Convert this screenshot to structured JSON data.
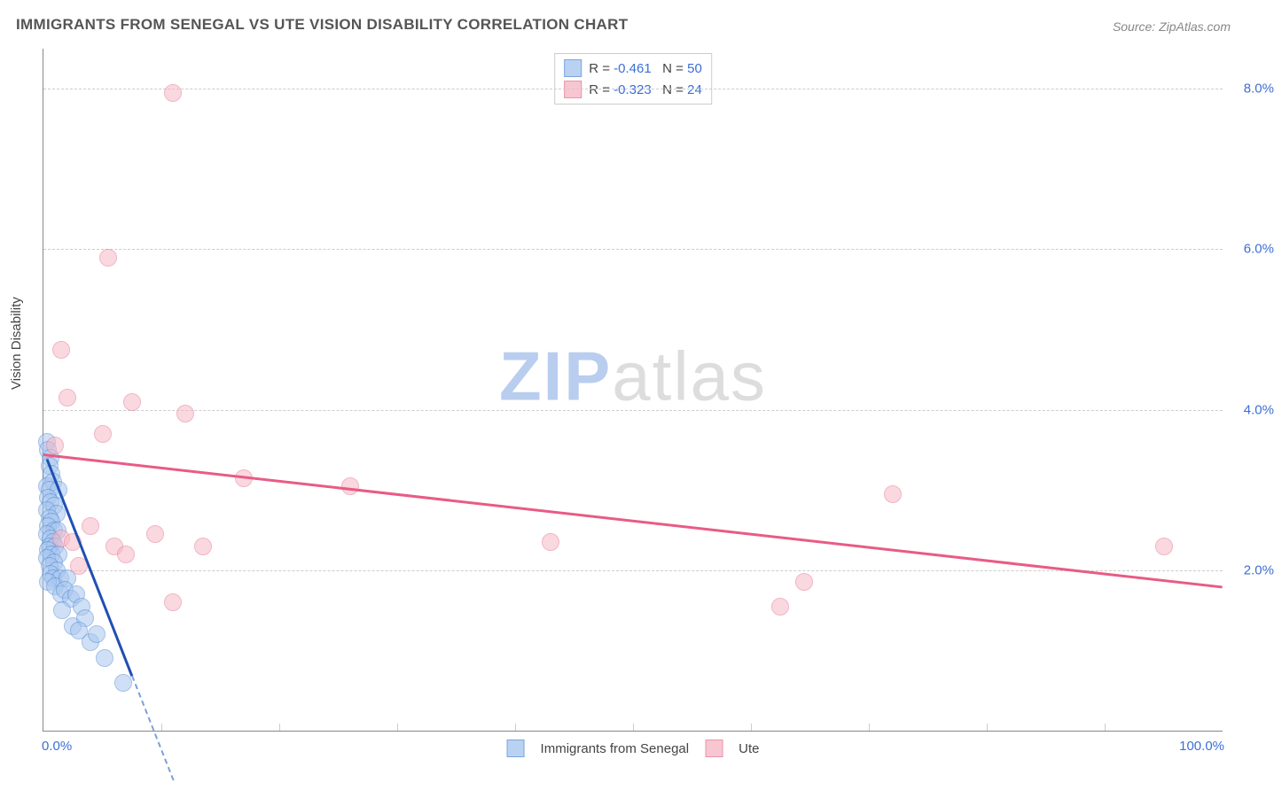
{
  "title": "IMMIGRANTS FROM SENEGAL VS UTE VISION DISABILITY CORRELATION CHART",
  "source": "Source: ZipAtlas.com",
  "ylabel": "Vision Disability",
  "watermark_strong": "ZIP",
  "watermark_light": "atlas",
  "watermark_strong_color": "#b9cdee",
  "watermark_light_color": "#dddddd",
  "chart": {
    "type": "scatter",
    "xlim": [
      0,
      100
    ],
    "ylim": [
      0,
      8.5
    ],
    "y_ticks": [
      2.0,
      4.0,
      6.0,
      8.0
    ],
    "y_tick_labels": [
      "2.0%",
      "4.0%",
      "6.0%",
      "8.0%"
    ],
    "x_ticks": [
      0,
      100
    ],
    "x_tick_labels": [
      "0.0%",
      "100.0%"
    ],
    "x_minor_ticks": [
      10,
      20,
      30,
      40,
      50,
      60,
      70,
      80,
      90
    ],
    "background_color": "#ffffff",
    "grid_color": "#cccccc",
    "axis_color": "#888888",
    "point_radius": 10,
    "point_border_width": 1.5,
    "series": [
      {
        "name": "Immigrants from Senegal",
        "fill": "#a9c7ef",
        "fill_opacity": 0.55,
        "stroke": "#5a8fd6",
        "trend_color": "#1f4fb3",
        "trend_dash_color": "#7da0d8",
        "R": "-0.461",
        "N": "50",
        "points": [
          [
            0.3,
            3.6
          ],
          [
            0.4,
            3.5
          ],
          [
            0.6,
            3.4
          ],
          [
            0.5,
            3.3
          ],
          [
            0.7,
            3.2
          ],
          [
            0.3,
            3.05
          ],
          [
            0.8,
            3.1
          ],
          [
            0.5,
            3.0
          ],
          [
            1.3,
            3.0
          ],
          [
            0.4,
            2.9
          ],
          [
            0.6,
            2.85
          ],
          [
            0.9,
            2.8
          ],
          [
            0.3,
            2.75
          ],
          [
            1.1,
            2.7
          ],
          [
            0.5,
            2.65
          ],
          [
            0.7,
            2.6
          ],
          [
            0.4,
            2.55
          ],
          [
            0.9,
            2.5
          ],
          [
            1.2,
            2.5
          ],
          [
            0.3,
            2.45
          ],
          [
            0.6,
            2.4
          ],
          [
            0.8,
            2.35
          ],
          [
            0.5,
            2.3
          ],
          [
            1.0,
            2.3
          ],
          [
            0.4,
            2.25
          ],
          [
            0.7,
            2.2
          ],
          [
            1.3,
            2.2
          ],
          [
            0.3,
            2.15
          ],
          [
            0.9,
            2.1
          ],
          [
            0.5,
            2.05
          ],
          [
            1.1,
            2.0
          ],
          [
            0.6,
            1.95
          ],
          [
            0.8,
            1.9
          ],
          [
            1.4,
            1.9
          ],
          [
            0.4,
            1.85
          ],
          [
            1.0,
            1.8
          ],
          [
            2.0,
            1.9
          ],
          [
            1.5,
            1.7
          ],
          [
            1.8,
            1.75
          ],
          [
            2.3,
            1.65
          ],
          [
            2.8,
            1.7
          ],
          [
            3.2,
            1.55
          ],
          [
            1.6,
            1.5
          ],
          [
            2.5,
            1.3
          ],
          [
            3.5,
            1.4
          ],
          [
            3.0,
            1.25
          ],
          [
            4.0,
            1.1
          ],
          [
            4.5,
            1.2
          ],
          [
            5.2,
            0.9
          ],
          [
            6.8,
            0.6
          ]
        ],
        "trend_start": [
          0.3,
          3.4
        ],
        "trend_end": [
          7.5,
          0.7
        ],
        "dash_end": [
          11.0,
          -0.6
        ]
      },
      {
        "name": "Ute",
        "fill": "#f6b9c6",
        "fill_opacity": 0.55,
        "stroke": "#e77a97",
        "trend_color": "#e85b85",
        "R": "-0.323",
        "N": "24",
        "points": [
          [
            11.0,
            7.95
          ],
          [
            5.5,
            5.9
          ],
          [
            1.5,
            4.75
          ],
          [
            2.0,
            4.15
          ],
          [
            7.5,
            4.1
          ],
          [
            12.0,
            3.95
          ],
          [
            5.0,
            3.7
          ],
          [
            1.0,
            3.55
          ],
          [
            17.0,
            3.15
          ],
          [
            26.0,
            3.05
          ],
          [
            4.0,
            2.55
          ],
          [
            9.5,
            2.45
          ],
          [
            1.5,
            2.4
          ],
          [
            6.0,
            2.3
          ],
          [
            2.5,
            2.35
          ],
          [
            13.5,
            2.3
          ],
          [
            7.0,
            2.2
          ],
          [
            43.0,
            2.35
          ],
          [
            72.0,
            2.95
          ],
          [
            95.0,
            2.3
          ],
          [
            64.5,
            1.85
          ],
          [
            62.5,
            1.55
          ],
          [
            11.0,
            1.6
          ],
          [
            3.0,
            2.05
          ]
        ],
        "trend_start": [
          0,
          3.45
        ],
        "trend_end": [
          100,
          1.8
        ]
      }
    ]
  },
  "legend_top": {
    "r_label": "R =",
    "n_label": "N =",
    "text_color": "#444444",
    "value_color": "#3b6fd6"
  },
  "legend_bottom": {
    "items": [
      "Immigrants from Senegal",
      "Ute"
    ]
  }
}
